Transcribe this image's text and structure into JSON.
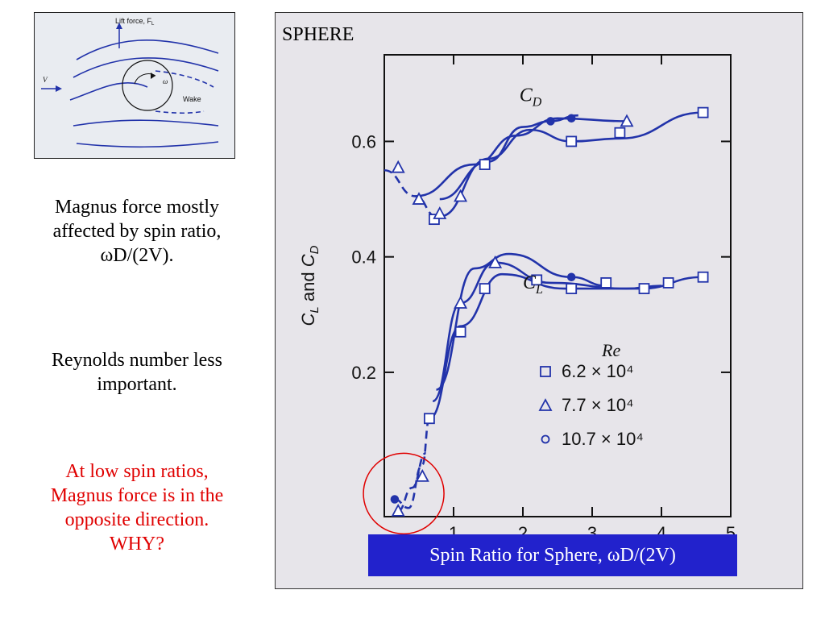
{
  "left_panel": {
    "diagram": {
      "lift_label": "Lift force, F",
      "lift_sub": "L",
      "v_label": "V",
      "omega_label": "ω",
      "wake_label": "Wake"
    },
    "notes": [
      {
        "lines": [
          "Magnus force mostly",
          "affected by spin ratio,",
          "ωD/(2V)."
        ],
        "color": "#000000"
      },
      {
        "lines": [
          "Reynolds number less",
          "important."
        ],
        "color": "#000000"
      },
      {
        "lines": [
          "At low spin ratios,",
          "Magnus force is in the",
          "opposite direction.",
          "WHY?"
        ],
        "color": "#e00000"
      }
    ]
  },
  "chart_title": "SPHERE",
  "caption": "Spin Ratio for Sphere, ωD/(2V)",
  "colors": {
    "curve": "#2233aa",
    "highlight": "#e00000",
    "caption_bg": "#2222cc"
  },
  "chart_data": {
    "type": "scatter",
    "ylabel": "C_L and C_D",
    "xlim": [
      0,
      5
    ],
    "ylim": [
      -0.05,
      0.75
    ],
    "x_ticks": [
      1,
      2,
      3,
      4,
      5
    ],
    "y_ticks": [
      0.2,
      0.4,
      0.6
    ],
    "grid": false,
    "legend": {
      "title": "Re",
      "entries": [
        {
          "label": "6.2 × 10⁴",
          "marker": "square"
        },
        {
          "label": "7.7 × 10⁴",
          "marker": "triangle"
        },
        {
          "label": "10.7 × 10⁴",
          "marker": "circle"
        }
      ],
      "placement": "right-middle"
    },
    "annotations": [
      {
        "text": "C_D",
        "x": 1.95,
        "y": 0.67
      },
      {
        "text": "C_L",
        "x": 2.0,
        "y": 0.345
      }
    ],
    "series": [
      {
        "name": "6.2 × 10⁴",
        "coefficient": "C_D",
        "marker": "square",
        "points": [
          [
            0.72,
            0.465
          ],
          [
            1.45,
            0.56
          ],
          [
            2.7,
            0.6
          ],
          [
            3.4,
            0.615
          ],
          [
            4.6,
            0.65
          ]
        ]
      },
      {
        "name": "7.7 × 10⁴",
        "coefficient": "C_D",
        "marker": "triangle",
        "points": [
          [
            0.2,
            0.555
          ],
          [
            0.5,
            0.5
          ],
          [
            0.8,
            0.475
          ],
          [
            1.1,
            0.505
          ],
          [
            3.5,
            0.635
          ]
        ]
      },
      {
        "name": "10.7 × 10⁴",
        "coefficient": "C_D",
        "marker": "circle",
        "points": [
          [
            2.4,
            0.635
          ],
          [
            2.7,
            0.64
          ]
        ]
      },
      {
        "name": "6.2 × 10⁴",
        "coefficient": "C_L",
        "marker": "square",
        "points": [
          [
            0.65,
            0.12
          ],
          [
            1.1,
            0.27
          ],
          [
            1.45,
            0.345
          ],
          [
            2.2,
            0.36
          ],
          [
            2.7,
            0.345
          ],
          [
            3.2,
            0.355
          ],
          [
            3.75,
            0.345
          ],
          [
            4.1,
            0.355
          ],
          [
            4.6,
            0.365
          ]
        ]
      },
      {
        "name": "7.7 × 10⁴",
        "coefficient": "C_L",
        "marker": "triangle",
        "points": [
          [
            0.2,
            -0.04
          ],
          [
            0.55,
            0.02
          ],
          [
            1.1,
            0.32
          ],
          [
            1.6,
            0.39
          ]
        ]
      },
      {
        "name": "10.7 × 10⁴",
        "coefficient": "C_L",
        "marker": "circle",
        "points": [
          [
            0.15,
            -0.02
          ],
          [
            2.7,
            0.365
          ]
        ]
      }
    ]
  }
}
